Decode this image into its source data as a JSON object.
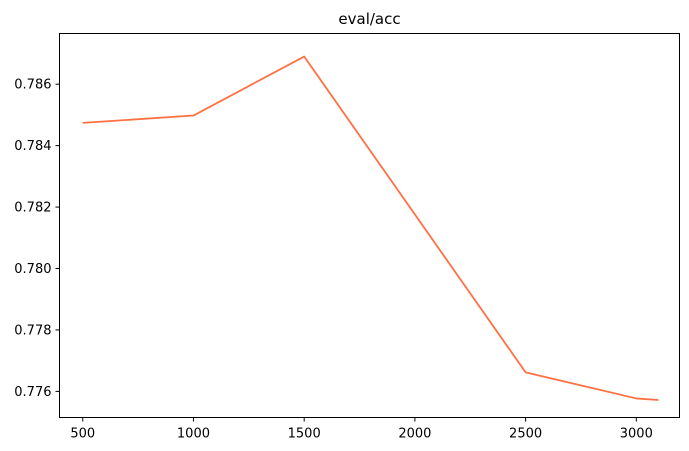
{
  "chart_data": {
    "type": "line",
    "title": "eval/acc",
    "xlabel": "",
    "ylabel": "",
    "xlim": [
      395,
      3195
    ],
    "ylim": [
      0.77515,
      0.78765
    ],
    "x_ticks": [
      500,
      1000,
      1500,
      2000,
      2500,
      3000
    ],
    "y_ticks": [
      0.776,
      0.778,
      0.78,
      0.782,
      0.784,
      0.786
    ],
    "y_tick_labels": [
      "0.776",
      "0.778",
      "0.780",
      "0.782",
      "0.784",
      "0.786"
    ],
    "grid": false,
    "legend": "none",
    "series": [
      {
        "color": "#ff7043",
        "x": [
          500,
          1000,
          1500,
          2500,
          3000,
          3100
        ],
        "y": [
          0.78474,
          0.78498,
          0.7869,
          0.77662,
          0.77577,
          0.77572
        ]
      }
    ]
  }
}
